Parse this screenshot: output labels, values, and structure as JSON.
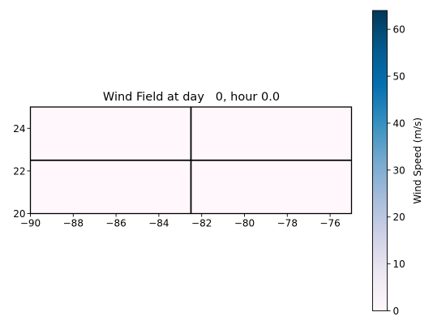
{
  "chart_data": {
    "type": "heatmap",
    "title": "Wind Field at day   0, hour 0.0",
    "xlabel": "",
    "ylabel": "",
    "xlim": [
      -90,
      -75
    ],
    "ylim": [
      20,
      25
    ],
    "xticks": [
      -90,
      -88,
      -86,
      -84,
      -82,
      -80,
      -78,
      -76
    ],
    "xtick_labels": [
      "−90",
      "−88",
      "−86",
      "−84",
      "−82",
      "−80",
      "−78",
      "−76"
    ],
    "yticks": [
      20,
      22,
      24
    ],
    "ytick_labels": [
      "20",
      "22",
      "24"
    ],
    "field_value": 0,
    "field_color": "#fff7fb",
    "gridlines": {
      "x": [
        -82.5
      ],
      "y": [
        22.5
      ],
      "color": "#000000"
    },
    "colorbar": {
      "label": "Wind Speed (m/s)",
      "range": [
        0,
        64
      ],
      "ticks": [
        0,
        10,
        20,
        30,
        40,
        50,
        60
      ],
      "tick_labels": [
        "0",
        "10",
        "20",
        "30",
        "40",
        "50",
        "60"
      ],
      "colormap": "PuBu",
      "stops": [
        "#fff7fb",
        "#ece7f2",
        "#d0d1e6",
        "#a6bddb",
        "#74a9cf",
        "#3690c0",
        "#0570b0",
        "#045a8d",
        "#023858"
      ]
    }
  }
}
